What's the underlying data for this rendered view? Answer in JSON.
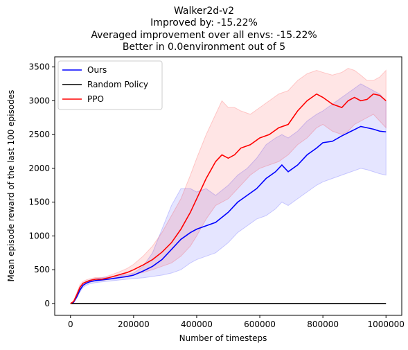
{
  "chart_data": {
    "type": "line",
    "title_lines": [
      "Walker2d-v2",
      "Improved by: -15.22%",
      "Averaged improvement over all envs: -15.22%",
      "Better in 0.0environment out of 5"
    ],
    "xlabel": "Number of timesteps",
    "ylabel": "Mean episode reward of the last 100 episodes",
    "xlim": [
      -50000,
      1050000
    ],
    "ylim": [
      -175,
      3650
    ],
    "xticks": [
      0,
      200000,
      400000,
      600000,
      800000,
      1000000
    ],
    "xtick_labels": [
      "0",
      "200000",
      "400000",
      "600000",
      "800000",
      "1000000"
    ],
    "yticks": [
      0,
      500,
      1000,
      1500,
      2000,
      2500,
      3000,
      3500
    ],
    "ytick_labels": [
      "0",
      "500",
      "1000",
      "1500",
      "2000",
      "2500",
      "3000",
      "3500"
    ],
    "legend": {
      "placement": "upper-left"
    },
    "series": [
      {
        "name": "Ours",
        "color": "#0000ff",
        "band_color": "#0000ff",
        "x": [
          0,
          10000,
          20000,
          30000,
          40000,
          50000,
          60000,
          80000,
          100000,
          120000,
          150000,
          180000,
          200000,
          230000,
          260000,
          290000,
          320000,
          350000,
          380000,
          400000,
          430000,
          460000,
          500000,
          530000,
          560000,
          590000,
          620000,
          650000,
          670000,
          690000,
          720000,
          750000,
          780000,
          800000,
          830000,
          860000,
          890000,
          920000,
          940000,
          960000,
          980000,
          1000000
        ],
        "mean": [
          0,
          20,
          100,
          200,
          270,
          300,
          320,
          340,
          350,
          360,
          380,
          400,
          420,
          480,
          550,
          650,
          800,
          950,
          1050,
          1100,
          1150,
          1200,
          1350,
          1500,
          1600,
          1700,
          1850,
          1950,
          2050,
          1950,
          2050,
          2200,
          2300,
          2380,
          2400,
          2480,
          2550,
          2620,
          2600,
          2580,
          2550,
          2540
        ],
        "upper": [
          0,
          30,
          120,
          230,
          300,
          330,
          345,
          370,
          380,
          390,
          410,
          430,
          450,
          550,
          750,
          1100,
          1450,
          1700,
          1700,
          1650,
          1700,
          1600,
          1750,
          1900,
          2000,
          2150,
          2350,
          2450,
          2500,
          2450,
          2550,
          2700,
          2800,
          2850,
          2950,
          3050,
          3150,
          3250,
          3200,
          3150,
          3100,
          3000
        ],
        "lower": [
          0,
          10,
          80,
          170,
          240,
          270,
          290,
          310,
          320,
          330,
          345,
          360,
          370,
          380,
          400,
          420,
          450,
          500,
          600,
          650,
          700,
          750,
          900,
          1050,
          1150,
          1250,
          1300,
          1400,
          1500,
          1450,
          1550,
          1650,
          1750,
          1800,
          1850,
          1900,
          1950,
          2000,
          1980,
          1950,
          1920,
          1900
        ]
      },
      {
        "name": "Random Policy",
        "color": "#000000",
        "x": [
          0,
          1000000
        ],
        "mean": [
          0,
          0
        ]
      },
      {
        "name": "PPO",
        "color": "#ff0000",
        "band_color": "#ff0000",
        "x": [
          0,
          10000,
          20000,
          30000,
          40000,
          50000,
          60000,
          80000,
          100000,
          120000,
          150000,
          180000,
          200000,
          230000,
          260000,
          290000,
          320000,
          350000,
          380000,
          400000,
          430000,
          460000,
          480000,
          500000,
          520000,
          540000,
          570000,
          600000,
          630000,
          660000,
          690000,
          720000,
          750000,
          780000,
          800000,
          830000,
          860000,
          880000,
          900000,
          920000,
          940000,
          960000,
          980000,
          1000000
        ],
        "mean": [
          0,
          30,
          130,
          240,
          300,
          320,
          340,
          360,
          360,
          380,
          420,
          460,
          500,
          570,
          650,
          760,
          900,
          1100,
          1350,
          1550,
          1850,
          2100,
          2200,
          2150,
          2200,
          2300,
          2350,
          2450,
          2500,
          2600,
          2650,
          2850,
          3000,
          3100,
          3050,
          2950,
          2900,
          3000,
          3050,
          3000,
          3020,
          3100,
          3080,
          3000
        ],
        "upper": [
          0,
          40,
          160,
          280,
          330,
          350,
          365,
          385,
          385,
          410,
          460,
          520,
          580,
          700,
          850,
          1050,
          1300,
          1550,
          1900,
          2150,
          2500,
          2800,
          3000,
          2900,
          2900,
          2850,
          2800,
          2900,
          3000,
          3100,
          3150,
          3300,
          3400,
          3450,
          3420,
          3380,
          3420,
          3480,
          3450,
          3380,
          3300,
          3300,
          3350,
          3450
        ],
        "lower": [
          0,
          20,
          100,
          200,
          270,
          300,
          315,
          335,
          340,
          355,
          385,
          410,
          430,
          460,
          500,
          550,
          600,
          700,
          850,
          1000,
          1250,
          1450,
          1500,
          1550,
          1650,
          1750,
          1900,
          2000,
          2050,
          2100,
          2200,
          2350,
          2450,
          2600,
          2650,
          2550,
          2500,
          2550,
          2650,
          2700,
          2750,
          2800,
          2700,
          2600
        ]
      }
    ]
  }
}
